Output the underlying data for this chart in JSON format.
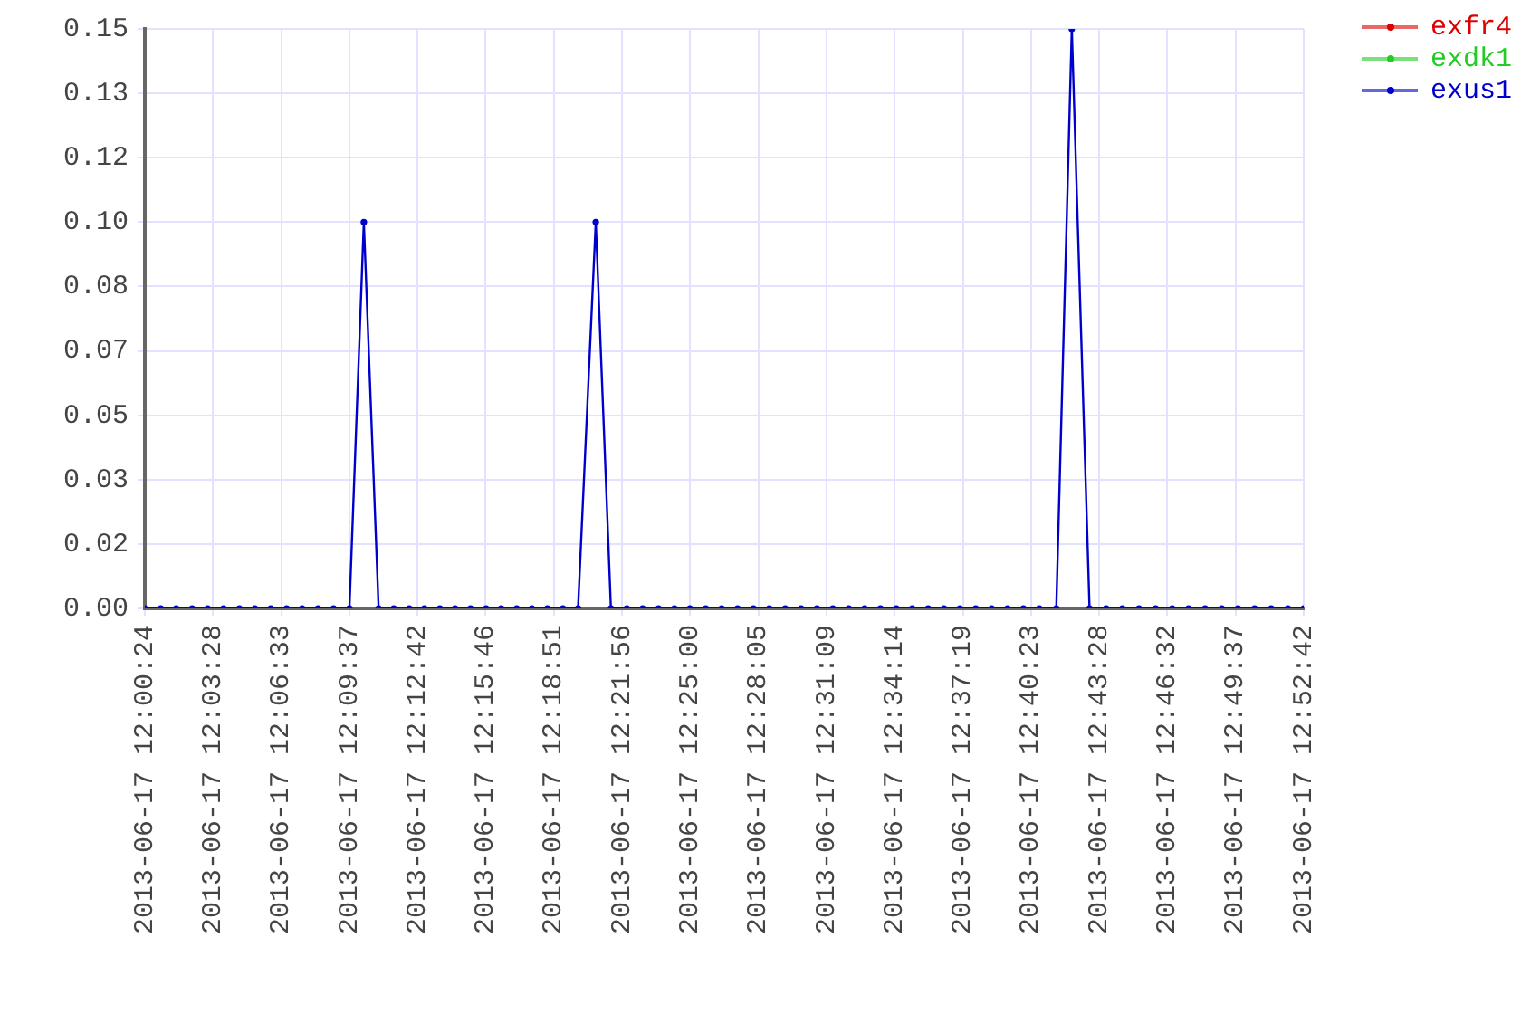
{
  "chart_data": {
    "type": "line",
    "x": [
      "2013-06-17T12:00:24",
      "2013-06-17T12:01:07",
      "2013-06-17T12:01:49",
      "2013-06-17T12:02:32",
      "2013-06-17T12:03:14",
      "2013-06-17T12:03:57",
      "2013-06-17T12:04:40",
      "2013-06-17T12:05:22",
      "2013-06-17T12:06:05",
      "2013-06-17T12:06:48",
      "2013-06-17T12:07:30",
      "2013-06-17T12:08:13",
      "2013-06-17T12:08:55",
      "2013-06-17T12:09:38",
      "2013-06-17T12:10:17",
      "2013-06-17T12:10:57",
      "2013-06-17T12:11:38",
      "2013-06-17T12:12:20",
      "2013-06-17T12:13:01",
      "2013-06-17T12:13:43",
      "2013-06-17T12:14:24",
      "2013-06-17T12:15:06",
      "2013-06-17T12:15:48",
      "2013-06-17T12:16:29",
      "2013-06-17T12:17:11",
      "2013-06-17T12:17:52",
      "2013-06-17T12:18:34",
      "2013-06-17T12:19:16",
      "2013-06-17T12:19:57",
      "2013-06-17T12:20:45",
      "2013-06-17T12:21:26",
      "2013-06-17T12:22:09",
      "2013-06-17T12:22:52",
      "2013-06-17T12:23:35",
      "2013-06-17T12:24:18",
      "2013-06-17T12:25:00",
      "2013-06-17T12:25:43",
      "2013-06-17T12:26:26",
      "2013-06-17T12:27:09",
      "2013-06-17T12:27:52",
      "2013-06-17T12:28:35",
      "2013-06-17T12:29:18",
      "2013-06-17T12:30:01",
      "2013-06-17T12:30:44",
      "2013-06-17T12:31:27",
      "2013-06-17T12:32:10",
      "2013-06-17T12:32:53",
      "2013-06-17T12:33:36",
      "2013-06-17T12:34:19",
      "2013-06-17T12:35:02",
      "2013-06-17T12:35:45",
      "2013-06-17T12:36:28",
      "2013-06-17T12:37:11",
      "2013-06-17T12:37:54",
      "2013-06-17T12:38:37",
      "2013-06-17T12:39:20",
      "2013-06-17T12:40:03",
      "2013-06-17T12:40:46",
      "2013-06-17T12:41:32",
      "2013-06-17T12:42:14",
      "2013-06-17T12:43:02",
      "2013-06-17T12:43:47",
      "2013-06-17T12:44:31",
      "2013-06-17T12:45:16",
      "2013-06-17T12:46:01",
      "2013-06-17T12:46:46",
      "2013-06-17T12:47:30",
      "2013-06-17T12:48:15",
      "2013-06-17T12:49:00",
      "2013-06-17T12:49:44",
      "2013-06-17T12:50:29",
      "2013-06-17T12:51:14",
      "2013-06-17T12:51:59",
      "2013-06-17T12:52:42"
    ],
    "series": [
      {
        "name": "exfr4",
        "color": "#dd0000",
        "values": [
          null,
          null,
          null,
          null,
          null,
          null,
          null,
          null,
          null,
          null,
          null,
          null,
          null,
          null,
          null,
          null,
          null,
          null,
          null,
          null,
          null,
          null,
          null,
          null,
          null,
          null,
          null,
          null,
          null,
          null,
          null,
          null,
          null,
          null,
          null,
          null,
          null,
          null,
          null,
          null,
          null,
          null,
          null,
          null,
          null,
          null,
          null,
          null,
          null,
          null,
          null,
          null,
          null,
          null,
          null,
          null,
          null,
          null,
          null,
          null,
          null,
          null,
          null,
          null,
          null,
          null,
          null,
          null,
          null,
          null,
          null,
          null,
          null,
          null
        ]
      },
      {
        "name": "exdk1",
        "color": "#22cc22",
        "values": [
          null,
          null,
          null,
          null,
          null,
          null,
          null,
          null,
          null,
          null,
          null,
          null,
          null,
          null,
          null,
          null,
          null,
          null,
          null,
          null,
          null,
          null,
          null,
          null,
          null,
          null,
          null,
          null,
          null,
          null,
          null,
          null,
          null,
          null,
          null,
          null,
          null,
          null,
          null,
          null,
          null,
          null,
          null,
          null,
          null,
          null,
          null,
          null,
          null,
          null,
          null,
          null,
          null,
          null,
          null,
          null,
          null,
          null,
          null,
          null,
          null,
          null,
          null,
          null,
          null,
          null,
          null,
          null,
          null,
          null,
          null,
          null,
          null,
          null
        ]
      },
      {
        "name": "exus1",
        "color": "#0000cc",
        "values": [
          0,
          0,
          0,
          0,
          0,
          0,
          0,
          0,
          0,
          0,
          0,
          0,
          0,
          0,
          0.1,
          0,
          0,
          0,
          0,
          0,
          0,
          0,
          0,
          0,
          0,
          0,
          0,
          0,
          0,
          0.1,
          0,
          0,
          0,
          0,
          0,
          0,
          0,
          0,
          0,
          0,
          0,
          0,
          0,
          0,
          0,
          0,
          0,
          0,
          0,
          0,
          0,
          0,
          0,
          0,
          0,
          0,
          0,
          0,
          0,
          0.15,
          0,
          0,
          0,
          0,
          0,
          0,
          0,
          0,
          0,
          0,
          0,
          0,
          0,
          0
        ]
      }
    ],
    "xlim": [
      "2013-06-17T12:00:24",
      "2013-06-17T12:52:42"
    ],
    "xticks": [
      {
        "value": "2013-06-17T12:00:24",
        "label": "2013-06-17 12:00:24"
      },
      {
        "value": "2013-06-17T12:03:28",
        "label": "2013-06-17 12:03:28"
      },
      {
        "value": "2013-06-17T12:06:33",
        "label": "2013-06-17 12:06:33"
      },
      {
        "value": "2013-06-17T12:09:37",
        "label": "2013-06-17 12:09:37"
      },
      {
        "value": "2013-06-17T12:12:42",
        "label": "2013-06-17 12:12:42"
      },
      {
        "value": "2013-06-17T12:15:46",
        "label": "2013-06-17 12:15:46"
      },
      {
        "value": "2013-06-17T12:18:51",
        "label": "2013-06-17 12:18:51"
      },
      {
        "value": "2013-06-17T12:21:56",
        "label": "2013-06-17 12:21:56"
      },
      {
        "value": "2013-06-17T12:25:00",
        "label": "2013-06-17 12:25:00"
      },
      {
        "value": "2013-06-17T12:28:05",
        "label": "2013-06-17 12:28:05"
      },
      {
        "value": "2013-06-17T12:31:09",
        "label": "2013-06-17 12:31:09"
      },
      {
        "value": "2013-06-17T12:34:14",
        "label": "2013-06-17 12:34:14"
      },
      {
        "value": "2013-06-17T12:37:19",
        "label": "2013-06-17 12:37:19"
      },
      {
        "value": "2013-06-17T12:40:23",
        "label": "2013-06-17 12:40:23"
      },
      {
        "value": "2013-06-17T12:43:28",
        "label": "2013-06-17 12:43:28"
      },
      {
        "value": "2013-06-17T12:46:32",
        "label": "2013-06-17 12:46:32"
      },
      {
        "value": "2013-06-17T12:49:37",
        "label": "2013-06-17 12:49:37"
      },
      {
        "value": "2013-06-17T12:52:42",
        "label": "2013-06-17 12:52:42"
      }
    ],
    "ylim": [
      0,
      0.15
    ],
    "yticks": [
      {
        "value": 0,
        "label": "0.00"
      },
      {
        "value": 0.01667,
        "label": "0.02"
      },
      {
        "value": 0.03333,
        "label": "0.03"
      },
      {
        "value": 0.05,
        "label": "0.05"
      },
      {
        "value": 0.06667,
        "label": "0.07"
      },
      {
        "value": 0.08333,
        "label": "0.08"
      },
      {
        "value": 0.1,
        "label": "0.10"
      },
      {
        "value": 0.11667,
        "label": "0.12"
      },
      {
        "value": 0.13333,
        "label": "0.13"
      },
      {
        "value": 0.15,
        "label": "0.15"
      }
    ],
    "grid": true,
    "legend": "top right",
    "marker": "circle",
    "line_style": "solid"
  }
}
